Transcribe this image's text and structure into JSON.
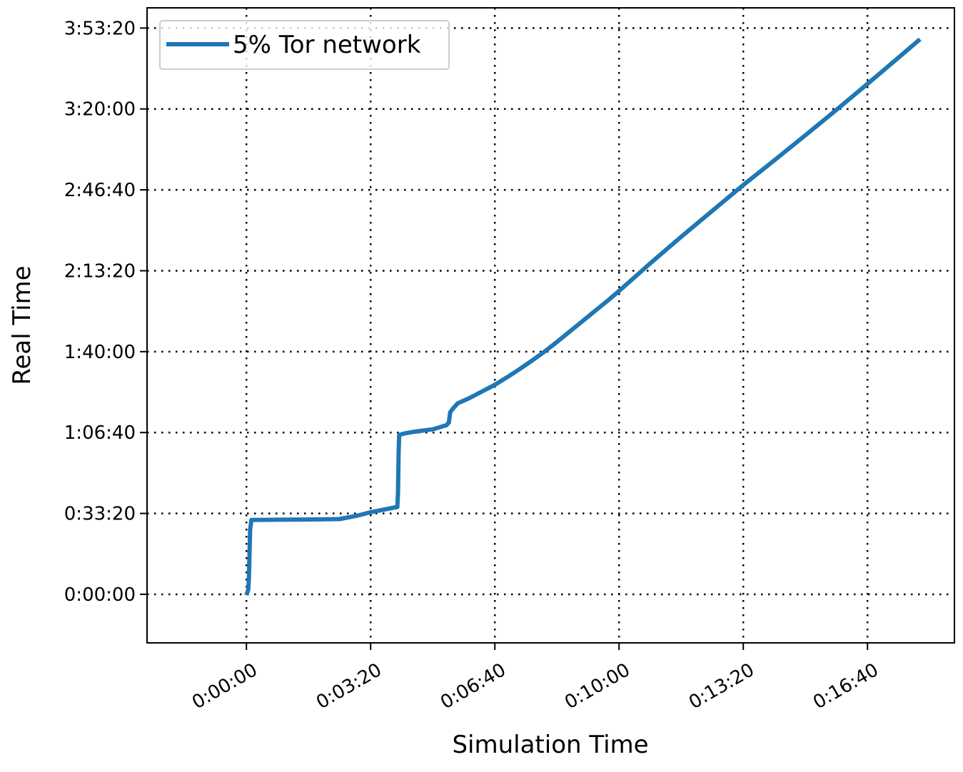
{
  "chart_data": {
    "type": "line",
    "title": "",
    "xlabel": "Simulation Time",
    "ylabel": "Real Time",
    "x_unit": "seconds",
    "y_unit": "seconds",
    "xlim": [
      -160,
      1140
    ],
    "ylim": [
      -1200,
      14500
    ],
    "xticks": [
      {
        "value": 0,
        "label": "0:00:00"
      },
      {
        "value": 200,
        "label": "0:03:20"
      },
      {
        "value": 400,
        "label": "0:06:40"
      },
      {
        "value": 600,
        "label": "0:10:00"
      },
      {
        "value": 800,
        "label": "0:13:20"
      },
      {
        "value": 1000,
        "label": "0:16:40"
      }
    ],
    "yticks": [
      {
        "value": 0,
        "label": "0:00:00"
      },
      {
        "value": 2000,
        "label": "0:33:20"
      },
      {
        "value": 4000,
        "label": "1:06:40"
      },
      {
        "value": 6000,
        "label": "1:40:00"
      },
      {
        "value": 8000,
        "label": "2:13:20"
      },
      {
        "value": 10000,
        "label": "2:46:40"
      },
      {
        "value": 12000,
        "label": "3:20:00"
      },
      {
        "value": 14000,
        "label": "3:53:20"
      }
    ],
    "grid": true,
    "legend_position": "top-left",
    "series": [
      {
        "name": "5% Tor network",
        "color": "#1f77b4",
        "points": [
          [
            1,
            30
          ],
          [
            3,
            120
          ],
          [
            4,
            400
          ],
          [
            5,
            1000
          ],
          [
            6,
            1600
          ],
          [
            8,
            1840
          ],
          [
            50,
            1845
          ],
          [
            100,
            1850
          ],
          [
            150,
            1860
          ],
          [
            153,
            1870
          ],
          [
            180,
            1950
          ],
          [
            200,
            2030
          ],
          [
            243,
            2160
          ],
          [
            244,
            2500
          ],
          [
            245,
            3500
          ],
          [
            246,
            3940
          ],
          [
            255,
            3980
          ],
          [
            270,
            4020
          ],
          [
            300,
            4080
          ],
          [
            322,
            4180
          ],
          [
            326,
            4250
          ],
          [
            328,
            4500
          ],
          [
            332,
            4580
          ],
          [
            340,
            4720
          ],
          [
            360,
            4860
          ],
          [
            380,
            5020
          ],
          [
            400,
            5180
          ],
          [
            420,
            5370
          ],
          [
            440,
            5570
          ],
          [
            460,
            5780
          ],
          [
            480,
            6000
          ],
          [
            500,
            6240
          ],
          [
            520,
            6490
          ],
          [
            540,
            6740
          ],
          [
            560,
            6990
          ],
          [
            580,
            7240
          ],
          [
            600,
            7500
          ],
          [
            650,
            8180
          ],
          [
            700,
            8840
          ],
          [
            750,
            9480
          ],
          [
            800,
            10120
          ],
          [
            850,
            10730
          ],
          [
            900,
            11350
          ],
          [
            950,
            11980
          ],
          [
            1000,
            12620
          ],
          [
            1050,
            13270
          ],
          [
            1082,
            13690
          ]
        ]
      }
    ]
  }
}
